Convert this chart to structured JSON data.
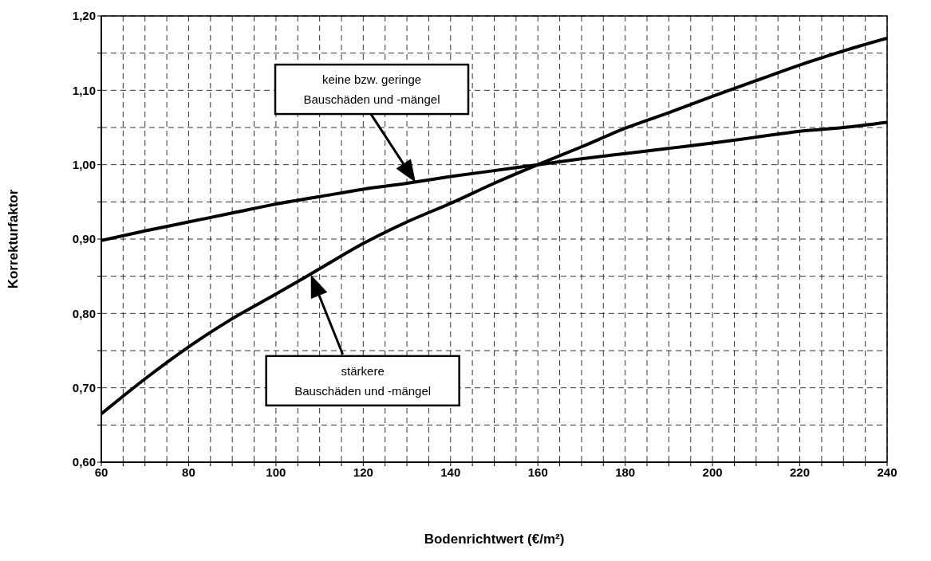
{
  "chart_data": {
    "type": "line",
    "xlabel": "Bodenrichtwert (€/m²)",
    "ylabel": "Korrekturfaktor",
    "x": [
      60,
      70,
      80,
      90,
      100,
      110,
      120,
      130,
      140,
      150,
      160,
      170,
      180,
      190,
      200,
      210,
      220,
      230,
      240
    ],
    "series": [
      {
        "color": "#000000",
        "values": [
          0.898,
          0.911,
          0.923,
          0.935,
          0.947,
          0.957,
          0.967,
          0.975,
          0.984,
          0.992,
          1.0,
          1.008,
          1.015,
          1.022,
          1.029,
          1.037,
          1.045,
          1.05,
          1.057
        ]
      },
      {
        "color": "#000000",
        "values": [
          0.665,
          0.712,
          0.755,
          0.793,
          0.826,
          0.86,
          0.894,
          0.923,
          0.948,
          0.975,
          1.0,
          1.024,
          1.049,
          1.07,
          1.092,
          1.113,
          1.134,
          1.153,
          1.17
        ]
      }
    ],
    "xlim": [
      60,
      240
    ],
    "xticks": [
      60,
      {
        "value": 65,
        "label": null
      },
      {
        "value": 70,
        "label": null
      },
      {
        "value": 75,
        "label": null
      },
      80,
      {
        "value": 85,
        "label": null
      },
      {
        "value": 90,
        "label": null
      },
      {
        "value": 95,
        "label": null
      },
      100,
      {
        "value": 105,
        "label": null
      },
      {
        "value": 110,
        "label": null
      },
      {
        "value": 115,
        "label": null
      },
      120,
      {
        "value": 125,
        "label": null
      },
      {
        "value": 130,
        "label": null
      },
      {
        "value": 135,
        "label": null
      },
      140,
      {
        "value": 145,
        "label": null
      },
      {
        "value": 150,
        "label": null
      },
      {
        "value": 155,
        "label": null
      },
      160,
      {
        "value": 165,
        "label": null
      },
      {
        "value": 170,
        "label": null
      },
      {
        "value": 175,
        "label": null
      },
      180,
      {
        "value": 185,
        "label": null
      },
      {
        "value": 190,
        "label": null
      },
      {
        "value": 195,
        "label": null
      },
      200,
      {
        "value": 205,
        "label": null
      },
      {
        "value": 210,
        "label": null
      },
      {
        "value": 215,
        "label": null
      },
      220,
      {
        "value": 225,
        "label": null
      },
      {
        "value": 230,
        "label": null
      },
      {
        "value": 235,
        "label": null
      },
      240
    ],
    "ylim": [
      0.6,
      1.2
    ],
    "yticks": [
      {
        "value": 0.6,
        "label": "0,60"
      },
      {
        "value": 0.65,
        "label": null
      },
      {
        "value": 0.7,
        "label": "0,70"
      },
      {
        "value": 0.75,
        "label": null
      },
      {
        "value": 0.8,
        "label": "0,80"
      },
      {
        "value": 0.85,
        "label": null
      },
      {
        "value": 0.9,
        "label": "0,90"
      },
      {
        "value": 0.95,
        "label": null
      },
      {
        "value": 1.0,
        "label": "1,00"
      },
      {
        "value": 1.05,
        "label": null
      },
      {
        "value": 1.1,
        "label": "1,10"
      },
      {
        "value": 1.15,
        "label": null
      },
      {
        "value": 1.2,
        "label": "1,20"
      }
    ],
    "grid": true,
    "marker": "none",
    "line_style": "solid",
    "annotations": [
      "keine bzw. geringe\nBauschäden und -mängel",
      "stärkere\nBauschäden und -mängel"
    ]
  }
}
